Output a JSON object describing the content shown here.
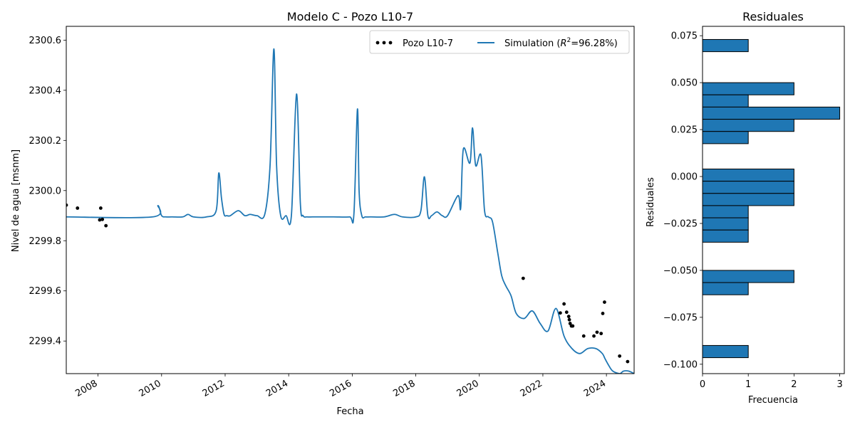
{
  "chart_data": [
    {
      "type": "line",
      "title": "Modelo C - Pozo L10-7",
      "xlabel": "Fecha",
      "ylabel": "Nivel de agua [msnm]",
      "xlim": [
        "2007-01-01",
        "2024-11-15"
      ],
      "ylim": [
        2299.27,
        2300.655
      ],
      "x_ticks": [
        "2008",
        "2010",
        "2012",
        "2014",
        "2016",
        "2018",
        "2020",
        "2022",
        "2024"
      ],
      "y_ticks": [
        "2299.4",
        "2299.6",
        "2299.8",
        "2300.0",
        "2300.2",
        "2300.4",
        "2300.6"
      ],
      "x_tick_values": [
        2008,
        2010,
        2012,
        2014,
        2016,
        2018,
        2020,
        2022,
        2024
      ],
      "y_tick_values": [
        2299.4,
        2299.6,
        2299.8,
        2300.0,
        2300.2,
        2300.4,
        2300.6
      ],
      "grid": false,
      "legend_position": "upper-right",
      "legend": {
        "observed_label": "Pozo L10-7",
        "simulation_prefix": "Simulation (",
        "simulation_r": "R",
        "simulation_sup": "2",
        "simulation_suffix": "=96.28%)"
      },
      "colors": {
        "simulation": "#1f77b4",
        "observed": "#000000"
      },
      "series": [
        {
          "name": "Simulation (R²=96.28%)",
          "style": "line",
          "x": [
            "2007-01-01",
            "2009-09-20",
            "2009-11-20",
            "2010-01-01",
            "2010-02-20",
            "2010-05-01",
            "2010-09-01",
            "2010-11-01",
            "2011-01-01",
            "2011-06-01",
            "2011-09-20",
            "2011-10-20",
            "2011-11-20",
            "2011-12-20",
            "2012-01-20",
            "2012-03-01",
            "2012-06-01",
            "2012-08-15",
            "2012-10-15",
            "2013-01-01",
            "2013-04-01",
            "2013-06-01",
            "2013-07-15",
            "2013-08-15",
            "2013-10-01",
            "2013-12-01",
            "2014-02-01",
            "2014-04-01",
            "2014-05-15",
            "2014-06-15",
            "2014-08-01",
            "2014-10-01",
            "2015-01-01",
            "2015-06-01",
            "2015-12-01",
            "2016-01-20",
            "2016-03-01",
            "2016-03-20",
            "2016-04-20",
            "2016-06-01",
            "2016-08-01",
            "2017-01-01",
            "2017-05-01",
            "2017-08-01",
            "2018-01-01",
            "2018-03-01",
            "2018-04-10",
            "2018-05-20",
            "2018-07-01",
            "2018-09-01",
            "2018-11-01",
            "2019-01-01",
            "2019-05-01",
            "2019-06-01",
            "2019-07-01",
            "2019-09-15",
            "2019-10-15",
            "2019-11-20",
            "2020-01-20",
            "2020-03-01",
            "2020-04-15",
            "2020-06-01",
            "2020-08-01",
            "2020-09-15",
            "2020-11-01",
            "2021-01-01",
            "2021-03-01",
            "2021-06-01",
            "2021-09-01",
            "2021-12-01",
            "2022-03-01",
            "2022-06-01",
            "2022-09-01",
            "2022-12-01",
            "2023-03-01",
            "2023-06-01",
            "2023-09-01",
            "2023-11-15",
            "2023-12-15",
            "2024-02-01",
            "2024-03-15",
            "2024-06-01",
            "2024-07-15",
            "2024-09-15",
            "2024-11-15"
          ],
          "y": [
            2299.895,
            2299.895,
            2299.94,
            2299.9,
            2299.895,
            2299.895,
            2299.895,
            2299.905,
            2299.895,
            2299.895,
            2299.92,
            2300.07,
            2299.97,
            2299.905,
            2299.9,
            2299.9,
            2299.92,
            2299.9,
            2299.905,
            2299.9,
            2299.905,
            2300.1,
            2300.565,
            2300.1,
            2299.9,
            2299.9,
            2299.9,
            2300.385,
            2299.95,
            2299.9,
            2299.895,
            2299.895,
            2299.895,
            2299.895,
            2299.895,
            2299.905,
            2300.325,
            2300.0,
            2299.9,
            2299.895,
            2299.895,
            2299.895,
            2299.905,
            2299.895,
            2299.895,
            2299.92,
            2300.055,
            2299.9,
            2299.9,
            2299.915,
            2299.9,
            2299.9,
            2299.98,
            2299.93,
            2300.165,
            2300.11,
            2300.25,
            2300.1,
            2300.14,
            2299.92,
            2299.895,
            2299.875,
            2299.75,
            2299.66,
            2299.62,
            2299.58,
            2299.51,
            2299.49,
            2299.52,
            2299.47,
            2299.44,
            2299.53,
            2299.42,
            2299.37,
            2299.35,
            2299.37,
            2299.37,
            2299.35,
            2299.33,
            2299.3,
            2299.28,
            2299.27,
            2299.28,
            2299.28,
            2299.27
          ]
        },
        {
          "name": "Pozo L10-7",
          "style": "scatter",
          "x": [
            "2007-01-01",
            "2007-05-10",
            "2008-01-20",
            "2008-02-01",
            "2008-02-20",
            "2008-04-01",
            "2021-05-20",
            "2022-07-20",
            "2022-09-01",
            "2022-10-01",
            "2022-10-25",
            "2022-11-01",
            "2022-11-10",
            "2022-11-25",
            "2022-12-10",
            "2023-04-15",
            "2023-08-10",
            "2023-09-15",
            "2023-11-01",
            "2023-11-20",
            "2023-12-10",
            "2024-06-01",
            "2024-09-01"
          ],
          "y": [
            2299.942,
            2299.93,
            2299.883,
            2299.93,
            2299.885,
            2299.86,
            2299.65,
            2299.512,
            2299.548,
            2299.515,
            2299.498,
            2299.485,
            2299.47,
            2299.46,
            2299.46,
            2299.42,
            2299.42,
            2299.435,
            2299.43,
            2299.51,
            2299.555,
            2299.34,
            2299.318
          ]
        }
      ]
    },
    {
      "type": "bar",
      "orientation": "horizontal",
      "title": "Residuales",
      "xlabel": "Frecuencia",
      "ylabel": "Residuales",
      "xlim": [
        0,
        3.1
      ],
      "ylim": [
        -0.105,
        0.08
      ],
      "x_ticks": [
        "0",
        "1",
        "2",
        "3"
      ],
      "x_tick_values": [
        0,
        1,
        2,
        3
      ],
      "y_ticks": [
        "0.075",
        "0.050",
        "0.025",
        "0.000",
        "−0.025",
        "−0.050",
        "−0.075",
        "−0.100"
      ],
      "y_tick_values": [
        0.075,
        0.05,
        0.025,
        0.0,
        -0.025,
        -0.05,
        -0.075,
        -0.1
      ],
      "bin_width": 0.0065,
      "bins": [
        {
          "from": 0.0665,
          "to": 0.073,
          "count": 1
        },
        {
          "from": 0.0435,
          "to": 0.05,
          "count": 2
        },
        {
          "from": 0.037,
          "to": 0.0435,
          "count": 1
        },
        {
          "from": 0.0305,
          "to": 0.037,
          "count": 3
        },
        {
          "from": 0.024,
          "to": 0.0305,
          "count": 2
        },
        {
          "from": 0.0175,
          "to": 0.024,
          "count": 1
        },
        {
          "from": -0.0025,
          "to": 0.004,
          "count": 2
        },
        {
          "from": -0.009,
          "to": -0.0025,
          "count": 2
        },
        {
          "from": -0.0155,
          "to": -0.009,
          "count": 2
        },
        {
          "from": -0.022,
          "to": -0.0155,
          "count": 1
        },
        {
          "from": -0.0285,
          "to": -0.022,
          "count": 1
        },
        {
          "from": -0.035,
          "to": -0.0285,
          "count": 1
        },
        {
          "from": -0.0565,
          "to": -0.05,
          "count": 2
        },
        {
          "from": -0.063,
          "to": -0.0565,
          "count": 1
        },
        {
          "from": -0.0965,
          "to": -0.09,
          "count": 1
        }
      ],
      "colors": {
        "bar_fill": "#1f77b4",
        "bar_edge": "#000000"
      }
    }
  ]
}
